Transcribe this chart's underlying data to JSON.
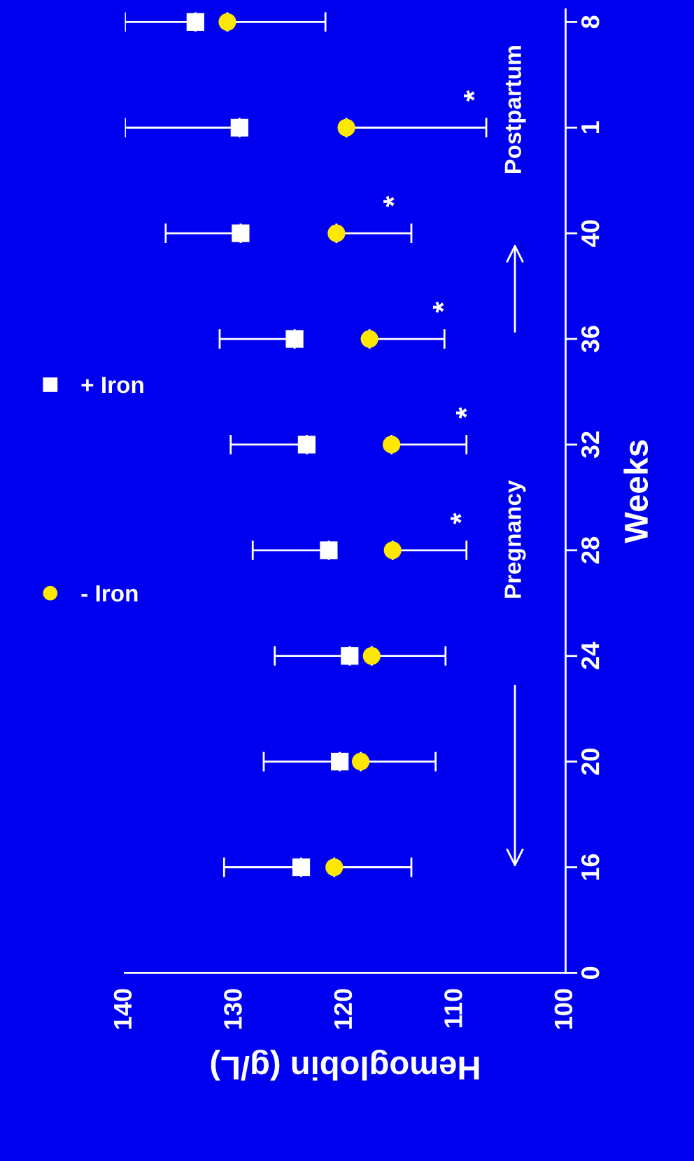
{
  "chart_data": {
    "type": "scatter",
    "orientation": "horizontal",
    "xlabel": "Hemoglobin (g/L)",
    "ylabel": "Weeks",
    "categories": [
      "8",
      "1",
      "40",
      "36",
      "32",
      "28",
      "24",
      "20",
      "16",
      "0"
    ],
    "xlim": [
      140,
      100
    ],
    "xticks": [
      140,
      130,
      120,
      110,
      100
    ],
    "legend": "left",
    "series": [
      {
        "name": "+ Iron",
        "color": "#ffffff",
        "marker": "square",
        "values": [
          133.6,
          129.6,
          129.5,
          124.6,
          123.5,
          121.5,
          119.6,
          120.5,
          124.0,
          null
        ],
        "errors": [
          [
            133.6,
            140.0
          ],
          [
            129.6,
            140.0
          ],
          [
            129.5,
            136.3
          ],
          [
            124.6,
            131.4
          ],
          [
            123.5,
            130.4
          ],
          [
            121.5,
            128.4
          ],
          [
            119.6,
            126.4
          ],
          [
            120.5,
            127.4
          ],
          [
            124.0,
            131.0
          ],
          null
        ]
      },
      {
        "name": "- Iron",
        "color": "#ffe800",
        "marker": "circle",
        "values": [
          130.7,
          119.9,
          120.8,
          117.8,
          115.8,
          115.7,
          117.6,
          118.6,
          121.0,
          null
        ],
        "errors": [
          [
            121.8,
            130.7
          ],
          [
            107.2,
            119.9
          ],
          [
            114.0,
            120.8
          ],
          [
            111.0,
            117.8
          ],
          [
            109.0,
            115.8
          ],
          [
            109.0,
            115.7
          ],
          [
            110.9,
            117.6
          ],
          [
            111.8,
            118.6
          ],
          [
            114.0,
            121.0
          ],
          null
        ]
      }
    ],
    "annotations": [
      "Pregnancy",
      "Postpartum",
      {
        "text": "*",
        "x": 109.3,
        "y": "28"
      },
      {
        "text": "*",
        "x": 108.8,
        "y": "32"
      },
      {
        "text": "*",
        "x": 110.9,
        "y": "36"
      },
      {
        "text": "*",
        "x": 115.4,
        "y": "40"
      },
      {
        "text": "*",
        "x": 108.1,
        "y": "1"
      }
    ]
  }
}
